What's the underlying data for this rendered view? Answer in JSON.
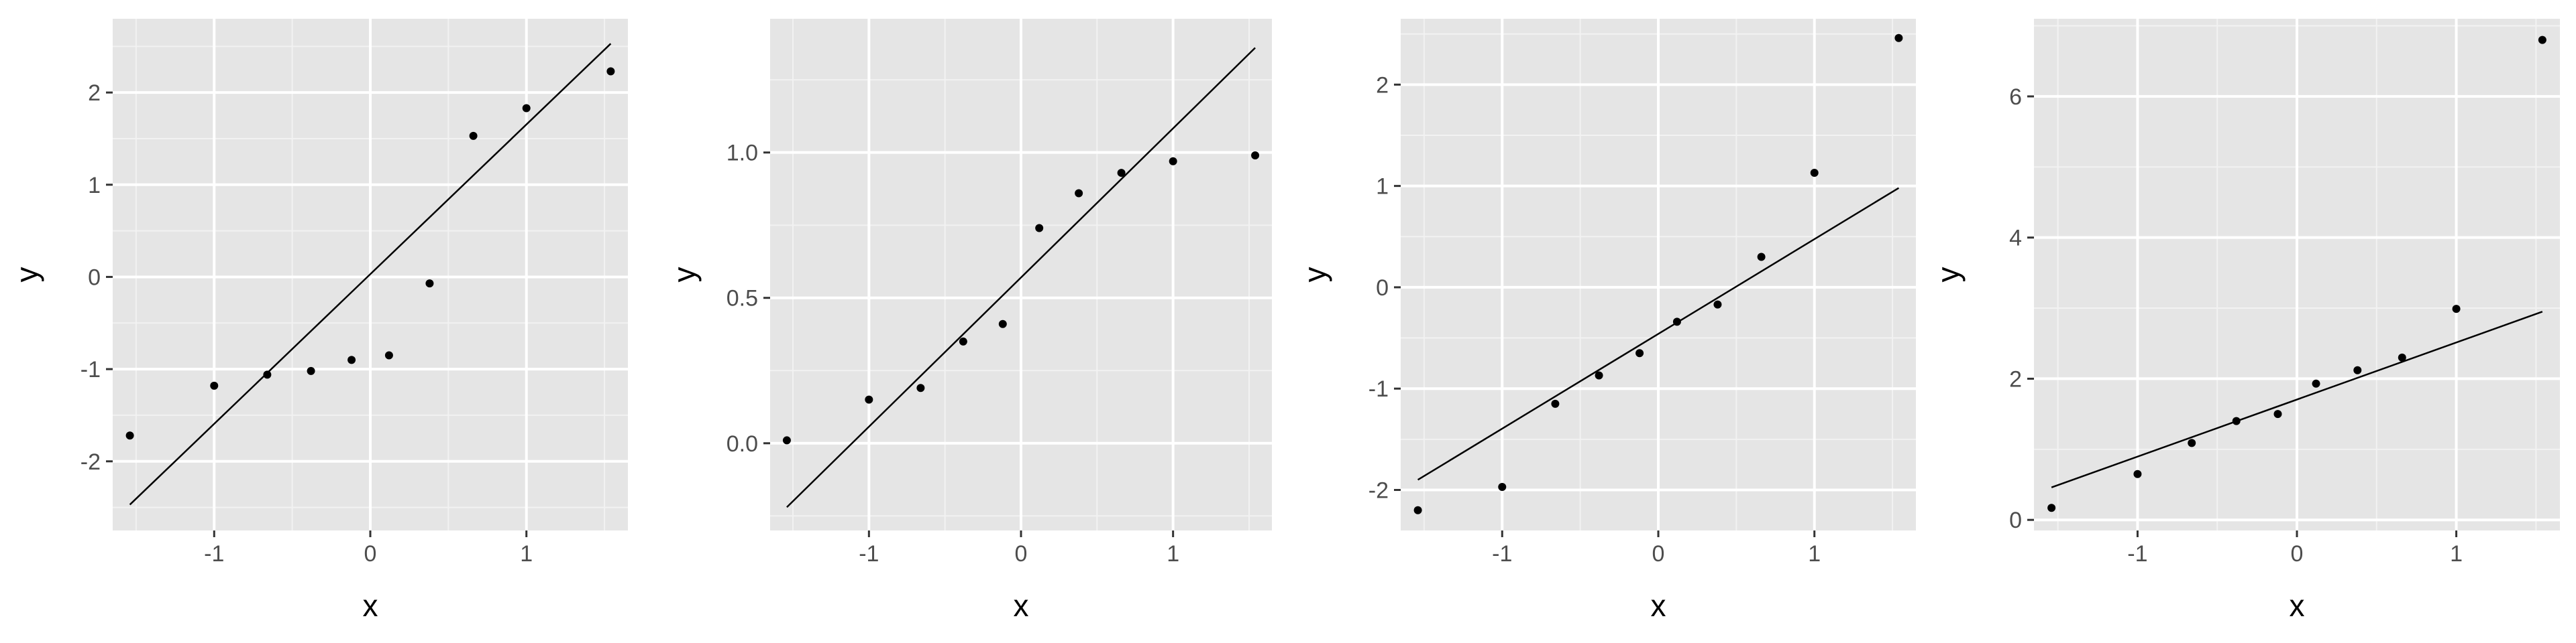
{
  "style": {
    "panel_background": "#e5e5e5",
    "grid_major": "#ffffff",
    "grid_minor": "#f2f2f2",
    "point_color": "#000000",
    "line_color": "#000000",
    "tick_color": "#333333"
  },
  "chart_data": [
    {
      "type": "scatter",
      "xlabel": "x",
      "ylabel": "y",
      "xlim": [
        -1.65,
        1.65
      ],
      "ylim": [
        -2.75,
        2.8
      ],
      "xticks": [
        -1,
        0,
        1
      ],
      "xtick_labels": [
        "-1",
        "0",
        "1"
      ],
      "yticks": [
        -2,
        -1,
        0,
        1,
        2
      ],
      "ytick_labels": [
        "-2",
        "-1",
        "0",
        "1",
        "2"
      ],
      "grid": true,
      "points": {
        "x": [
          -1.54,
          -1.0,
          -0.66,
          -0.38,
          -0.12,
          0.12,
          0.38,
          0.66,
          1.0,
          1.54
        ],
        "y": [
          -1.72,
          -1.18,
          -1.06,
          -1.02,
          -0.9,
          -0.85,
          -0.07,
          1.53,
          1.83,
          2.23
        ]
      },
      "line": {
        "x": [
          -1.54,
          1.54
        ],
        "y": [
          -2.47,
          2.53
        ]
      }
    },
    {
      "type": "scatter",
      "xlabel": "x",
      "ylabel": "y",
      "xlim": [
        -1.65,
        1.65
      ],
      "ylim": [
        -0.3,
        1.46
      ],
      "xticks": [
        -1,
        0,
        1
      ],
      "xtick_labels": [
        "-1",
        "0",
        "1"
      ],
      "yticks": [
        0.0,
        0.5,
        1.0
      ],
      "ytick_labels": [
        "0.0",
        "0.5",
        "1.0"
      ],
      "grid": true,
      "points": {
        "x": [
          -1.54,
          -1.0,
          -0.66,
          -0.38,
          -0.12,
          0.12,
          0.38,
          0.66,
          1.0,
          1.54
        ],
        "y": [
          0.01,
          0.15,
          0.19,
          0.35,
          0.41,
          0.74,
          0.86,
          0.93,
          0.97,
          0.99
        ]
      },
      "line": {
        "x": [
          -1.54,
          1.54
        ],
        "y": [
          -0.22,
          1.36
        ]
      }
    },
    {
      "type": "scatter",
      "xlabel": "x",
      "ylabel": "y",
      "xlim": [
        -1.65,
        1.65
      ],
      "ylim": [
        -2.4,
        2.65
      ],
      "xticks": [
        -1,
        0,
        1
      ],
      "xtick_labels": [
        "-1",
        "0",
        "1"
      ],
      "yticks": [
        -2,
        -1,
        0,
        1,
        2
      ],
      "ytick_labels": [
        "-2",
        "-1",
        "0",
        "1",
        "2"
      ],
      "grid": true,
      "points": {
        "x": [
          -1.54,
          -1.0,
          -0.66,
          -0.38,
          -0.12,
          0.12,
          0.38,
          0.66,
          1.0,
          1.54
        ],
        "y": [
          -2.2,
          -1.97,
          -1.15,
          -0.87,
          -0.65,
          -0.34,
          -0.17,
          0.3,
          1.13,
          2.46
        ]
      },
      "line": {
        "x": [
          -1.54,
          1.54
        ],
        "y": [
          -1.9,
          0.98
        ]
      }
    },
    {
      "type": "scatter",
      "xlabel": "x",
      "ylabel": "y",
      "xlim": [
        -1.65,
        1.65
      ],
      "ylim": [
        -0.15,
        7.1
      ],
      "xticks": [
        -1,
        0,
        1
      ],
      "xtick_labels": [
        "-1",
        "0",
        "1"
      ],
      "yticks": [
        0,
        2,
        4,
        6
      ],
      "ytick_labels": [
        "0",
        "2",
        "4",
        "6"
      ],
      "grid": true,
      "points": {
        "x": [
          -1.54,
          -1.0,
          -0.66,
          -0.38,
          -0.12,
          0.12,
          0.38,
          0.66,
          1.0,
          1.54
        ],
        "y": [
          0.17,
          0.65,
          1.09,
          1.4,
          1.5,
          1.93,
          2.12,
          2.3,
          2.99,
          6.8
        ]
      },
      "line": {
        "x": [
          -1.54,
          1.54
        ],
        "y": [
          0.46,
          2.95
        ]
      }
    }
  ]
}
